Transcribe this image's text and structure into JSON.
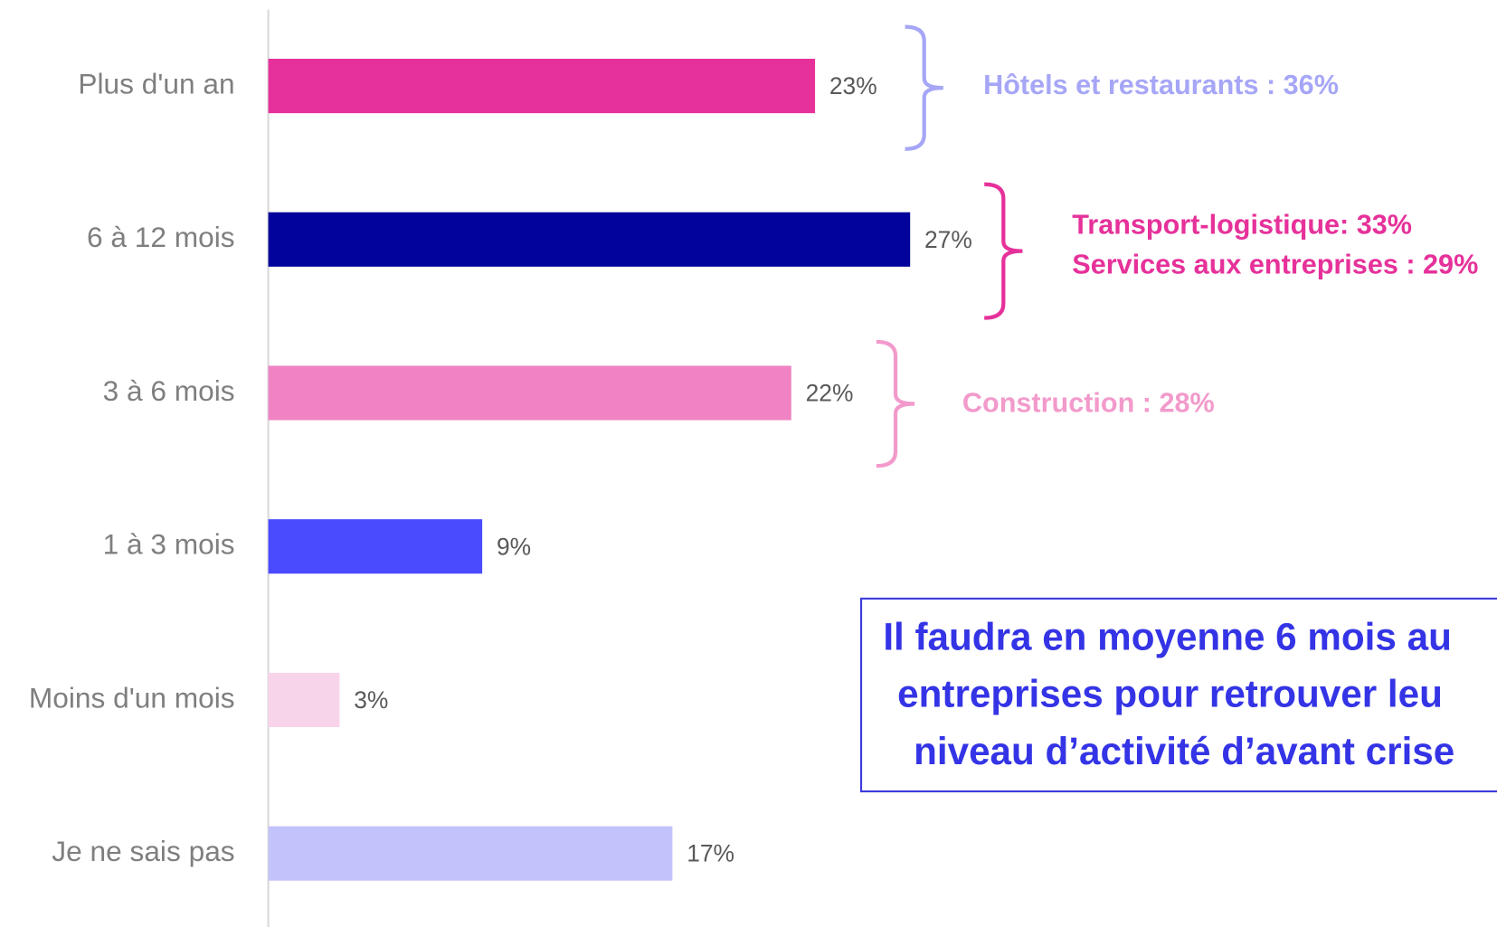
{
  "chart_data": {
    "type": "bar",
    "orientation": "horizontal",
    "categories": [
      "Plus d'un an",
      "6 à 12 mois",
      "3 à 6 mois",
      "1 à 3 mois",
      "Moins d'un mois",
      "Je ne sais pas"
    ],
    "values": [
      23,
      27,
      22,
      9,
      3,
      17
    ],
    "value_labels": [
      "23%",
      "27%",
      "22%",
      "9%",
      "3%",
      "17%"
    ],
    "colors": [
      "#e6319a",
      "#02039b",
      "#ef83c3",
      "#4a4aff",
      "#f8d4ea",
      "#c3c3fc"
    ],
    "annotations": [
      {
        "lines": [
          "Hôtels et restaurants : 36%"
        ],
        "color": "#a6a6f7"
      },
      {
        "lines": [
          "Transport-logistique: 33%",
          "Services aux entreprises : 29%"
        ],
        "color": "#e6319a"
      },
      {
        "lines": [
          "Construction : 28%"
        ],
        "color": "#f29acb"
      }
    ],
    "callout": {
      "lines": [
        "Il faudra en moyenne 6 mois au",
        "entreprises pour retrouver leu",
        "niveau d’activité d’avant crise"
      ]
    }
  }
}
